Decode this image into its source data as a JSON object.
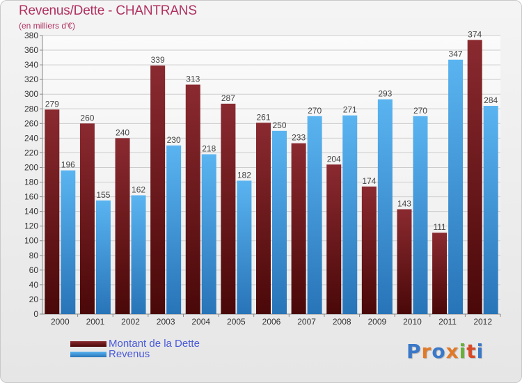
{
  "chart_data": {
    "type": "bar",
    "title": "Revenus/Dette - CHANTRANS",
    "subtitle": "(en milliers d'€)",
    "categories": [
      "2000",
      "2001",
      "2002",
      "2003",
      "2004",
      "2005",
      "2006",
      "2007",
      "2008",
      "2009",
      "2010",
      "2011",
      "2012"
    ],
    "series": [
      {
        "name": "Montant de la Dette",
        "color": "#7a1a1f",
        "values": [
          279,
          260,
          240,
          339,
          313,
          287,
          261,
          233,
          204,
          174,
          143,
          111,
          374
        ]
      },
      {
        "name": "Revenus",
        "color": "#3d9be0",
        "values": [
          196,
          155,
          162,
          230,
          218,
          182,
          250,
          270,
          271,
          293,
          270,
          347,
          284
        ]
      }
    ],
    "ylim": [
      0,
      380
    ],
    "ytick_step": 20,
    "grid": true,
    "legend_position": "bottom-left",
    "data_labels": true
  },
  "logo": {
    "text": "Proxiti",
    "colors": [
      "#3a78c8",
      "#e07a28",
      "#3a78c8",
      "#e07a28",
      "#6aae3a",
      "#d84a28",
      "#3a78c8"
    ]
  }
}
